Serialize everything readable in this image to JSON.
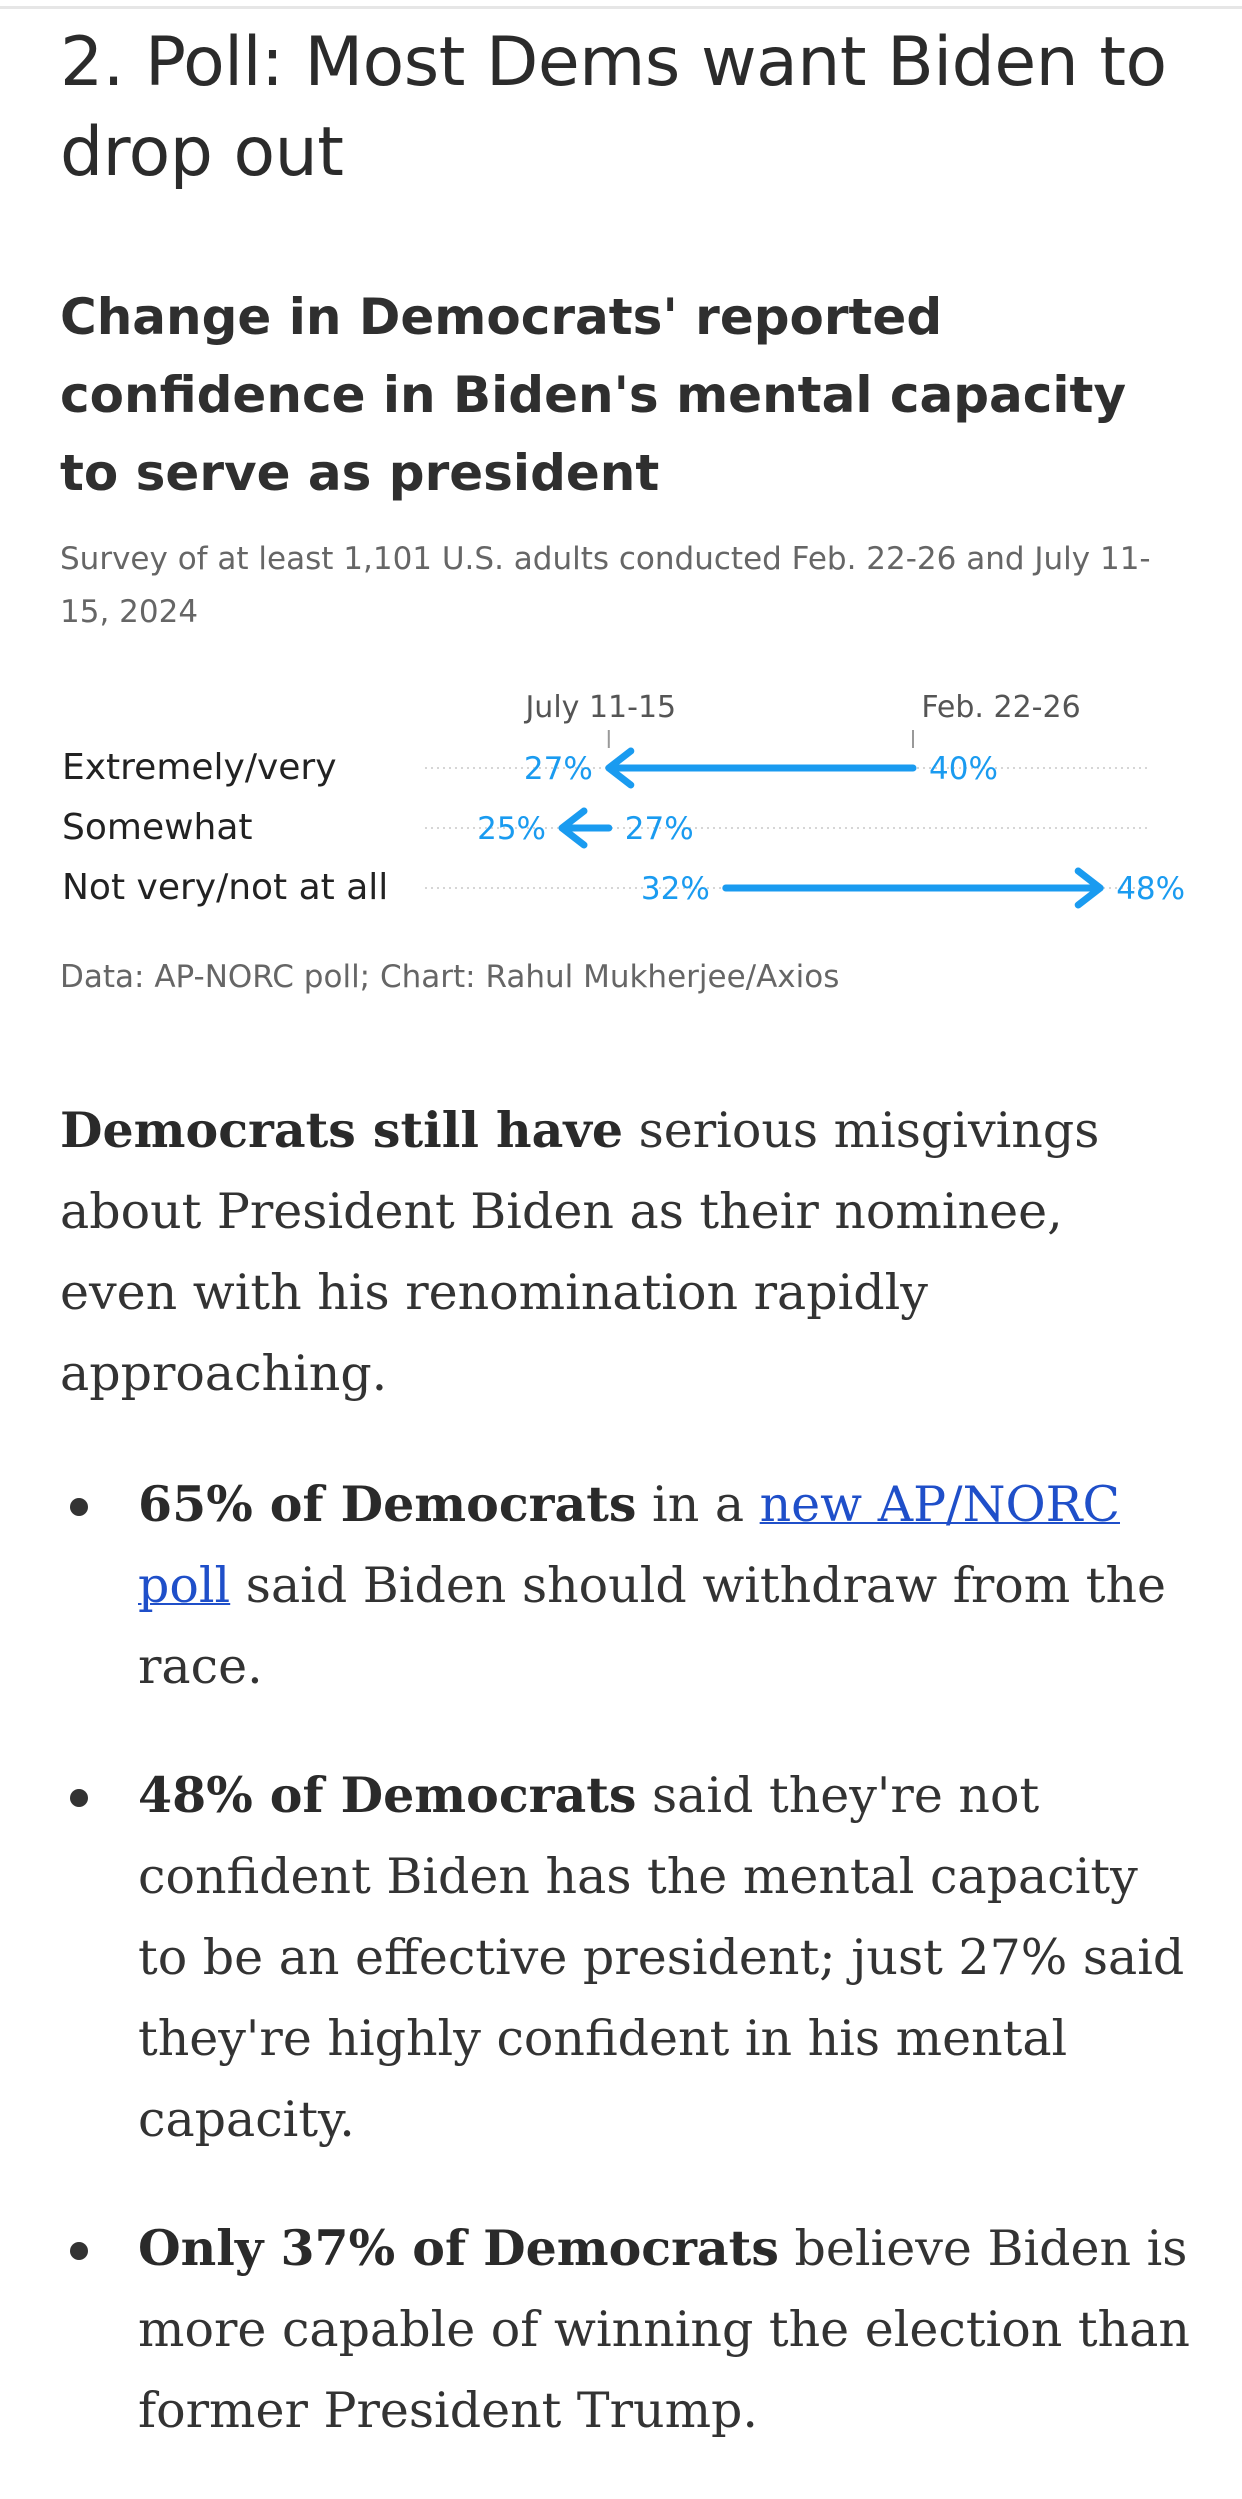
{
  "headline": "2. Poll: Most Dems want Biden to drop out",
  "chart_data": {
    "type": "arrow-dot",
    "title": "Change in Democrats' reported confidence in Biden's mental capacity to serve as president",
    "subtitle": "Survey of at least 1,101 U.S. adults conducted Feb. 22-26 and July 11-15, 2024",
    "series_labels": {
      "from": "Feb. 22-26",
      "to": "July 11-15"
    },
    "categories": [
      "Extremely/very",
      "Somewhat",
      "Not very/not at all"
    ],
    "from_values": [
      40,
      27,
      32
    ],
    "to_values": [
      27,
      25,
      48
    ],
    "value_labels_from": [
      "40%",
      "27%",
      "32%"
    ],
    "value_labels_to": [
      "27%",
      "25%",
      "48%"
    ],
    "xlim": [
      20,
      50
    ],
    "colors": {
      "arrow": "#1a9bf0",
      "gridline": "#d6d6d6",
      "tick": "#999999"
    },
    "credit": "Data: AP-NORC poll; Chart: Rahul Mukherjee/Axios"
  },
  "article": {
    "intro_bold": "Democrats still have",
    "intro_rest": " serious misgivings about President Biden as their nominee, even with his renomination rapidly approaching.",
    "bullets": [
      {
        "bold": "65% of Democrats",
        "text_before_link": " in a ",
        "link": "new AP/NORC poll",
        "text_after_link": " said Biden should withdraw from the race."
      },
      {
        "bold": "48% of Democrats",
        "text": " said they're not confident Biden has the mental capacity to be an effective president; just 27% said they're highly confident in his mental capacity."
      },
      {
        "bold": "Only 37% of Democrats",
        "text": " believe Biden is more capable of winning the election than former President Trump."
      }
    ]
  }
}
